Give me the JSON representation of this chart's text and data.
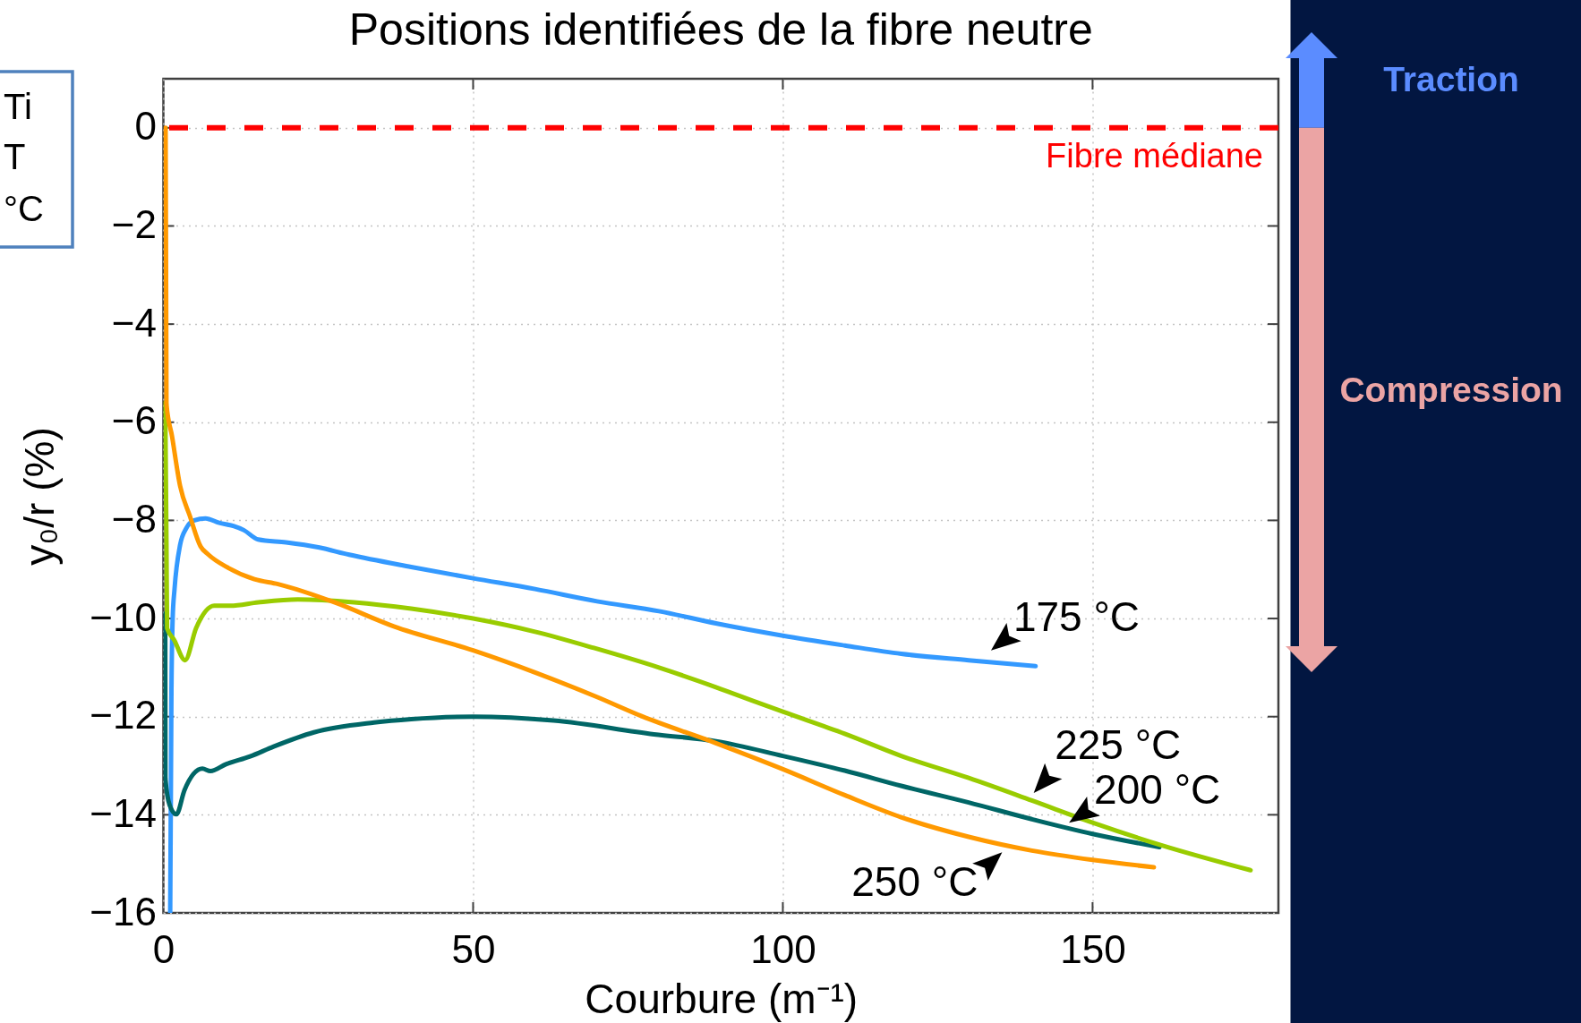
{
  "chart_data": {
    "type": "line",
    "title": "Positions identifiées de la  fibre neutre",
    "xlabel": "Courbure (m⁻¹)",
    "ylabel": "y₀/r (%)",
    "xlim": [
      0,
      180
    ],
    "ylim": [
      -16,
      1
    ],
    "xticks": [
      0,
      50,
      100,
      150
    ],
    "yticks": [
      -16,
      -14,
      -12,
      -10,
      -8,
      -6,
      -4,
      -2,
      0
    ],
    "grid": true,
    "series": [
      {
        "color": "#3399ff",
        "x": [
          1.1,
          1.3,
          1.5,
          1.8,
          2.7,
          3.7,
          5.0,
          6.8,
          9.0,
          11.4,
          13.0,
          15.3,
          19.8,
          25,
          30,
          40,
          50,
          60,
          70,
          80,
          89.2,
          100,
          110,
          119.1,
          130,
          140.8
        ],
        "values": [
          -16,
          -11.5,
          -10.0,
          -9.4,
          -8.5,
          -8.16,
          -8.0,
          -7.96,
          -8.05,
          -8.12,
          -8.2,
          -8.39,
          -8.45,
          -8.55,
          -8.7,
          -8.95,
          -9.18,
          -9.4,
          -9.65,
          -9.85,
          -10.1,
          -10.35,
          -10.55,
          -10.72,
          -10.85,
          -10.97
        ]
      },
      {
        "color": "#006666",
        "x": [
          0.3,
          0.33,
          1.0,
          2.1,
          3.4,
          6.3,
          7.6,
          10.1,
          14.0,
          17.8,
          24.3,
          34.0,
          40,
          50,
          63.0,
          79.2,
          89.2,
          100,
          110,
          119.1,
          130,
          140.2,
          150,
          160.8
        ],
        "values": [
          -9.9,
          -13.26,
          -13.8,
          -13.99,
          -13.5,
          -13.06,
          -13.11,
          -12.97,
          -12.81,
          -12.61,
          -12.32,
          -12.12,
          -12.05,
          -12.0,
          -12.08,
          -12.36,
          -12.5,
          -12.8,
          -13.1,
          -13.41,
          -13.75,
          -14.09,
          -14.39,
          -14.66
        ]
      },
      {
        "color": "#99cc00",
        "x": [
          0.3,
          0.5,
          0.6,
          1.75,
          3.5,
          5.3,
          8.2,
          10.8,
          15.3,
          21.7,
          30.8,
          40,
          50,
          60,
          69.5,
          80,
          89.2,
          96.5,
          100,
          110,
          119.1,
          130,
          140.2,
          150,
          161.1,
          175.5
        ],
        "values": [
          -5.6,
          -8.5,
          -10.2,
          -10.44,
          -10.85,
          -10.19,
          -9.74,
          -9.74,
          -9.67,
          -9.61,
          -9.67,
          -9.8,
          -10.0,
          -10.27,
          -10.6,
          -11.0,
          -11.4,
          -11.74,
          -11.9,
          -12.35,
          -12.8,
          -13.25,
          -13.71,
          -14.16,
          -14.62,
          -15.13
        ]
      },
      {
        "color": "#ff9900",
        "x": [
          0.36,
          0.5,
          1.4,
          2.7,
          4.3,
          6.0,
          7.2,
          10.5,
          14.7,
          18.5,
          27.6,
          37.2,
          50,
          60,
          70,
          77.2,
          89.2,
          100,
          110,
          119.1,
          130,
          140.2,
          150,
          159.9
        ],
        "values": [
          0,
          -5.63,
          -6.29,
          -7.3,
          -7.92,
          -8.53,
          -8.69,
          -8.97,
          -9.2,
          -9.3,
          -9.67,
          -10.16,
          -10.65,
          -11.1,
          -11.6,
          -11.99,
          -12.54,
          -13.07,
          -13.6,
          -14.05,
          -14.45,
          -14.73,
          -14.92,
          -15.07
        ]
      }
    ],
    "ref_lines": [
      {
        "axis": "y",
        "value": 0,
        "label": "Fibre médiane",
        "color": "#ff0000",
        "line_style": "dashed"
      }
    ],
    "annotations": [
      "Ti",
      "T",
      "°C",
      "Traction",
      "Compression",
      {
        "text": "175 °C",
        "x": 133.6,
        "y": -10.89
      },
      {
        "text": "225 °C",
        "x": 140.5,
        "y": -13.72
      },
      {
        "text": "200 °C",
        "x": 146.2,
        "y": -14.27
      },
      {
        "text": "250 °C",
        "x": 135.4,
        "y": -14.6
      }
    ]
  }
}
